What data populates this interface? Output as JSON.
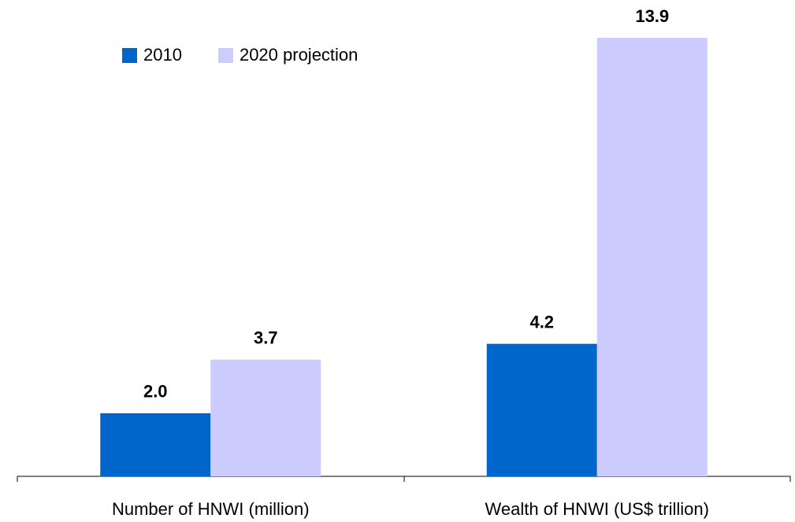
{
  "chart_data": {
    "type": "bar",
    "categories": [
      "Number of HNWI (million)",
      "Wealth of HNWI (US$ trillion)"
    ],
    "series": [
      {
        "name": "2010",
        "color": "#0066cc",
        "values": [
          2.0,
          4.2
        ],
        "value_labels": [
          "2.0",
          "4.2"
        ]
      },
      {
        "name": "2020 projection",
        "color": "#ccccff",
        "values": [
          3.7,
          13.9
        ],
        "value_labels": [
          "3.7",
          "13.9"
        ]
      }
    ],
    "legend": "top-left"
  }
}
